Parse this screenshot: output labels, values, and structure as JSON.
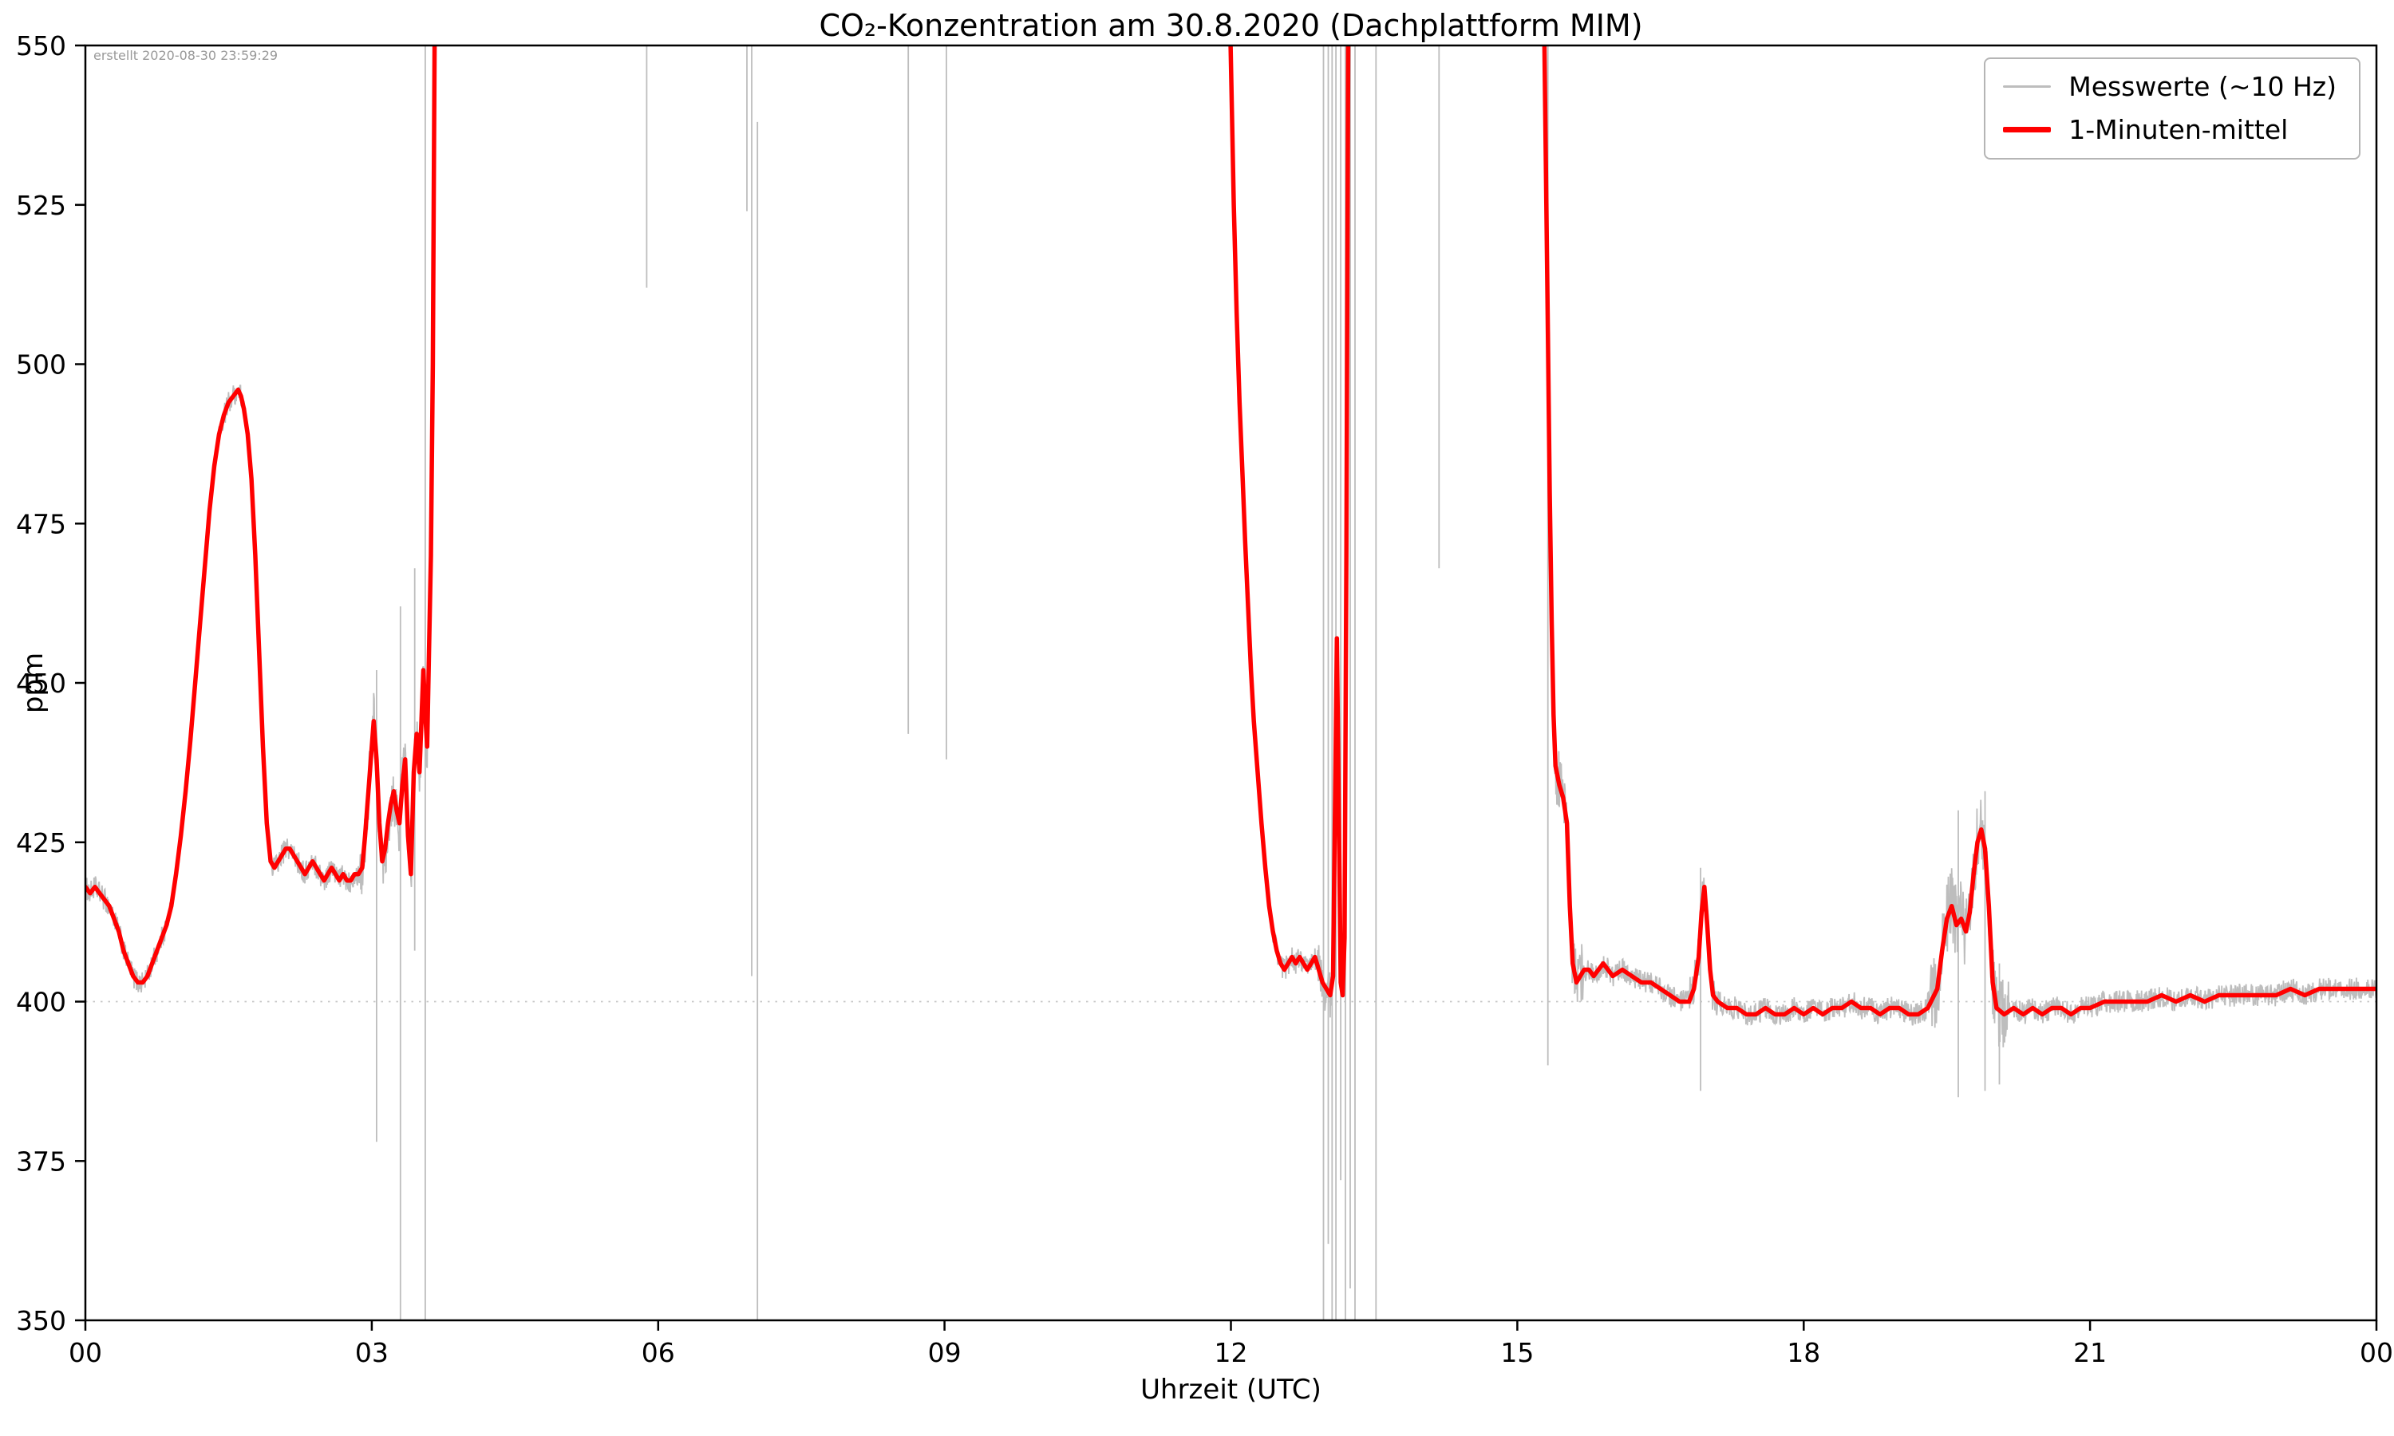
{
  "chart_data": {
    "type": "line",
    "title": "CO₂-Konzentration am 30.8.2020 (Dachplattform MIM)",
    "annotation": "erstellt 2020-08-30 23:59:29",
    "xlabel": "Uhrzeit (UTC)",
    "ylabel": "ppm",
    "xlim": [
      0,
      24
    ],
    "ylim": [
      350,
      550
    ],
    "x_ticks": [
      {
        "value": 0,
        "label": "00"
      },
      {
        "value": 3,
        "label": "03"
      },
      {
        "value": 6,
        "label": "06"
      },
      {
        "value": 9,
        "label": "09"
      },
      {
        "value": 12,
        "label": "12"
      },
      {
        "value": 15,
        "label": "15"
      },
      {
        "value": 18,
        "label": "18"
      },
      {
        "value": 21,
        "label": "21"
      },
      {
        "value": 24,
        "label": "00"
      }
    ],
    "y_ticks": [
      350,
      375,
      400,
      425,
      450,
      475,
      500,
      525,
      550
    ],
    "gridlines_y": [
      400
    ],
    "legend_position": "top-right",
    "colors": {
      "raw": "#bdbdbd",
      "mean": "#ff0000"
    },
    "series": [
      {
        "name": "Messwerte (~10 Hz)",
        "type": "raw-noise-around-mean",
        "base_amp": 1.8,
        "noise_regions": [
          [
            2.88,
            3.66,
            5
          ],
          [
            11.99,
            12.25,
            3
          ],
          [
            12.9,
            13.25,
            4
          ],
          [
            15.28,
            15.7,
            5
          ],
          [
            16.8,
            17.1,
            4
          ],
          [
            19.3,
            20.15,
            6
          ]
        ],
        "spikes": [
          [
            3.05,
            378,
            452
          ],
          [
            3.3,
            350,
            462
          ],
          [
            3.45,
            408,
            468
          ],
          [
            3.56,
            350,
            550
          ],
          [
            5.88,
            512,
            550
          ],
          [
            6.93,
            524,
            550
          ],
          [
            6.98,
            404,
            550
          ],
          [
            7.04,
            350,
            538
          ],
          [
            8.62,
            442,
            550
          ],
          [
            9.02,
            438,
            550
          ],
          [
            12.97,
            350,
            550
          ],
          [
            13.02,
            362,
            550
          ],
          [
            13.06,
            350,
            550
          ],
          [
            13.1,
            350,
            550
          ],
          [
            13.15,
            372,
            550
          ],
          [
            13.2,
            350,
            550
          ],
          [
            13.25,
            355,
            550
          ],
          [
            13.3,
            350,
            550
          ],
          [
            13.52,
            350,
            550
          ],
          [
            14.18,
            468,
            550
          ],
          [
            15.32,
            390,
            550
          ],
          [
            16.92,
            386,
            421
          ],
          [
            19.62,
            385,
            430
          ],
          [
            19.9,
            386,
            433
          ],
          [
            20.05,
            387,
            406
          ]
        ]
      },
      {
        "name": "1-Minuten-mittel",
        "type": "mean",
        "segments": [
          [
            [
              0.0,
              418
            ],
            [
              0.05,
              417
            ],
            [
              0.1,
              418
            ],
            [
              0.15,
              417
            ],
            [
              0.2,
              416
            ],
            [
              0.25,
              415
            ],
            [
              0.3,
              413
            ],
            [
              0.35,
              411
            ],
            [
              0.4,
              408
            ],
            [
              0.45,
              406
            ],
            [
              0.5,
              404
            ],
            [
              0.55,
              403
            ],
            [
              0.6,
              403
            ],
            [
              0.65,
              404
            ],
            [
              0.7,
              406
            ],
            [
              0.75,
              408
            ],
            [
              0.8,
              410
            ],
            [
              0.85,
              412
            ],
            [
              0.9,
              415
            ],
            [
              0.95,
              420
            ],
            [
              1.0,
              426
            ],
            [
              1.05,
              433
            ],
            [
              1.1,
              441
            ],
            [
              1.15,
              450
            ],
            [
              1.2,
              459
            ],
            [
              1.25,
              468
            ],
            [
              1.3,
              477
            ],
            [
              1.35,
              484
            ],
            [
              1.4,
              489
            ],
            [
              1.45,
              492
            ],
            [
              1.5,
              494
            ],
            [
              1.55,
              495
            ],
            [
              1.6,
              496
            ],
            [
              1.63,
              495
            ],
            [
              1.66,
              493
            ],
            [
              1.7,
              489
            ],
            [
              1.74,
              482
            ],
            [
              1.78,
              470
            ],
            [
              1.82,
              455
            ],
            [
              1.86,
              440
            ],
            [
              1.9,
              428
            ],
            [
              1.94,
              422
            ],
            [
              1.98,
              421
            ],
            [
              2.02,
              422
            ],
            [
              2.06,
              423
            ],
            [
              2.1,
              424
            ],
            [
              2.14,
              424
            ],
            [
              2.18,
              423
            ],
            [
              2.22,
              422
            ],
            [
              2.26,
              421
            ],
            [
              2.3,
              420
            ],
            [
              2.34,
              421
            ],
            [
              2.38,
              422
            ],
            [
              2.42,
              421
            ],
            [
              2.46,
              420
            ],
            [
              2.5,
              419
            ],
            [
              2.54,
              420
            ],
            [
              2.58,
              421
            ],
            [
              2.62,
              420
            ],
            [
              2.66,
              419
            ],
            [
              2.7,
              420
            ],
            [
              2.74,
              419
            ],
            [
              2.78,
              419
            ],
            [
              2.82,
              420
            ],
            [
              2.86,
              420
            ],
            [
              2.9,
              421
            ],
            [
              2.93,
              426
            ],
            [
              2.96,
              432
            ],
            [
              2.99,
              438
            ],
            [
              3.02,
              444
            ],
            [
              3.05,
              438
            ],
            [
              3.08,
              428
            ],
            [
              3.11,
              422
            ],
            [
              3.14,
              424
            ],
            [
              3.17,
              428
            ],
            [
              3.2,
              431
            ],
            [
              3.23,
              433
            ],
            [
              3.26,
              430
            ],
            [
              3.29,
              428
            ],
            [
              3.32,
              434
            ],
            [
              3.35,
              438
            ],
            [
              3.38,
              426
            ],
            [
              3.41,
              420
            ],
            [
              3.44,
              436
            ],
            [
              3.47,
              442
            ],
            [
              3.5,
              436
            ],
            [
              3.52,
              444
            ],
            [
              3.54,
              452
            ],
            [
              3.56,
              445
            ],
            [
              3.58,
              440
            ],
            [
              3.6,
              455
            ],
            [
              3.62,
              470
            ],
            [
              3.64,
              500
            ],
            [
              3.66,
              555
            ]
          ],
          [
            [
              11.99,
              555
            ],
            [
              12.01,
              540
            ],
            [
              12.03,
              525
            ],
            [
              12.06,
              508
            ],
            [
              12.09,
              494
            ],
            [
              12.12,
              483
            ],
            [
              12.15,
              472
            ],
            [
              12.18,
              462
            ],
            [
              12.21,
              452
            ],
            [
              12.24,
              444
            ],
            [
              12.28,
              436
            ],
            [
              12.32,
              428
            ],
            [
              12.36,
              421
            ],
            [
              12.4,
              415
            ],
            [
              12.44,
              411
            ],
            [
              12.48,
              408
            ],
            [
              12.52,
              406
            ],
            [
              12.56,
              405
            ],
            [
              12.6,
              406
            ],
            [
              12.64,
              407
            ],
            [
              12.68,
              406
            ],
            [
              12.72,
              407
            ],
            [
              12.76,
              406
            ],
            [
              12.8,
              405
            ],
            [
              12.84,
              406
            ],
            [
              12.88,
              407
            ],
            [
              12.92,
              405
            ],
            [
              12.96,
              403
            ],
            [
              13.0,
              402
            ],
            [
              13.04,
              401
            ],
            [
              13.07,
              404
            ],
            [
              13.09,
              430
            ],
            [
              13.11,
              457
            ],
            [
              13.13,
              430
            ],
            [
              13.15,
              403
            ],
            [
              13.17,
              401
            ],
            [
              13.19,
              410
            ],
            [
              13.21,
              470
            ],
            [
              13.23,
              555
            ]
          ],
          [
            [
              15.28,
              555
            ],
            [
              15.3,
              530
            ],
            [
              15.32,
              505
            ],
            [
              15.34,
              480
            ],
            [
              15.36,
              460
            ],
            [
              15.38,
              445
            ],
            [
              15.4,
              437
            ],
            [
              15.44,
              434
            ],
            [
              15.48,
              432
            ],
            [
              15.52,
              428
            ],
            [
              15.55,
              415
            ],
            [
              15.58,
              406
            ],
            [
              15.62,
              403
            ],
            [
              15.66,
              404
            ],
            [
              15.7,
              405
            ],
            [
              15.75,
              405
            ],
            [
              15.8,
              404
            ],
            [
              15.85,
              405
            ],
            [
              15.9,
              406
            ],
            [
              15.95,
              405
            ],
            [
              16.0,
              404
            ],
            [
              16.1,
              405
            ],
            [
              16.2,
              404
            ],
            [
              16.3,
              403
            ],
            [
              16.4,
              403
            ],
            [
              16.5,
              402
            ],
            [
              16.6,
              401
            ],
            [
              16.7,
              400
            ],
            [
              16.8,
              400
            ],
            [
              16.85,
              402
            ],
            [
              16.9,
              407
            ],
            [
              16.93,
              414
            ],
            [
              16.96,
              418
            ],
            [
              16.99,
              412
            ],
            [
              17.02,
              405
            ],
            [
              17.05,
              401
            ],
            [
              17.1,
              400
            ],
            [
              17.2,
              399
            ],
            [
              17.3,
              399
            ],
            [
              17.4,
              398
            ],
            [
              17.5,
              398
            ],
            [
              17.6,
              399
            ],
            [
              17.7,
              398
            ],
            [
              17.8,
              398
            ],
            [
              17.9,
              399
            ],
            [
              18.0,
              398
            ],
            [
              18.1,
              399
            ],
            [
              18.2,
              398
            ],
            [
              18.3,
              399
            ],
            [
              18.4,
              399
            ],
            [
              18.5,
              400
            ],
            [
              18.6,
              399
            ],
            [
              18.7,
              399
            ],
            [
              18.8,
              398
            ],
            [
              18.9,
              399
            ],
            [
              19.0,
              399
            ],
            [
              19.1,
              398
            ],
            [
              19.2,
              398
            ],
            [
              19.3,
              399
            ],
            [
              19.4,
              402
            ],
            [
              19.45,
              408
            ],
            [
              19.5,
              413
            ],
            [
              19.55,
              415
            ],
            [
              19.6,
              412
            ],
            [
              19.65,
              413
            ],
            [
              19.7,
              411
            ],
            [
              19.74,
              414
            ],
            [
              19.78,
              420
            ],
            [
              19.82,
              425
            ],
            [
              19.86,
              427
            ],
            [
              19.9,
              424
            ],
            [
              19.94,
              415
            ],
            [
              19.98,
              403
            ],
            [
              20.02,
              399
            ],
            [
              20.1,
              398
            ],
            [
              20.2,
              399
            ],
            [
              20.3,
              398
            ],
            [
              20.4,
              399
            ],
            [
              20.5,
              398
            ],
            [
              20.6,
              399
            ],
            [
              20.7,
              399
            ],
            [
              20.8,
              398
            ],
            [
              20.9,
              399
            ],
            [
              21.0,
              399
            ],
            [
              21.15,
              400
            ],
            [
              21.3,
              400
            ],
            [
              21.45,
              400
            ],
            [
              21.6,
              400
            ],
            [
              21.75,
              401
            ],
            [
              21.9,
              400
            ],
            [
              22.05,
              401
            ],
            [
              22.2,
              400
            ],
            [
              22.35,
              401
            ],
            [
              22.5,
              401
            ],
            [
              22.65,
              401
            ],
            [
              22.8,
              401
            ],
            [
              22.95,
              401
            ],
            [
              23.1,
              402
            ],
            [
              23.25,
              401
            ],
            [
              23.4,
              402
            ],
            [
              23.55,
              402
            ],
            [
              23.7,
              402
            ],
            [
              23.85,
              402
            ],
            [
              24.0,
              402
            ]
          ]
        ]
      }
    ]
  }
}
